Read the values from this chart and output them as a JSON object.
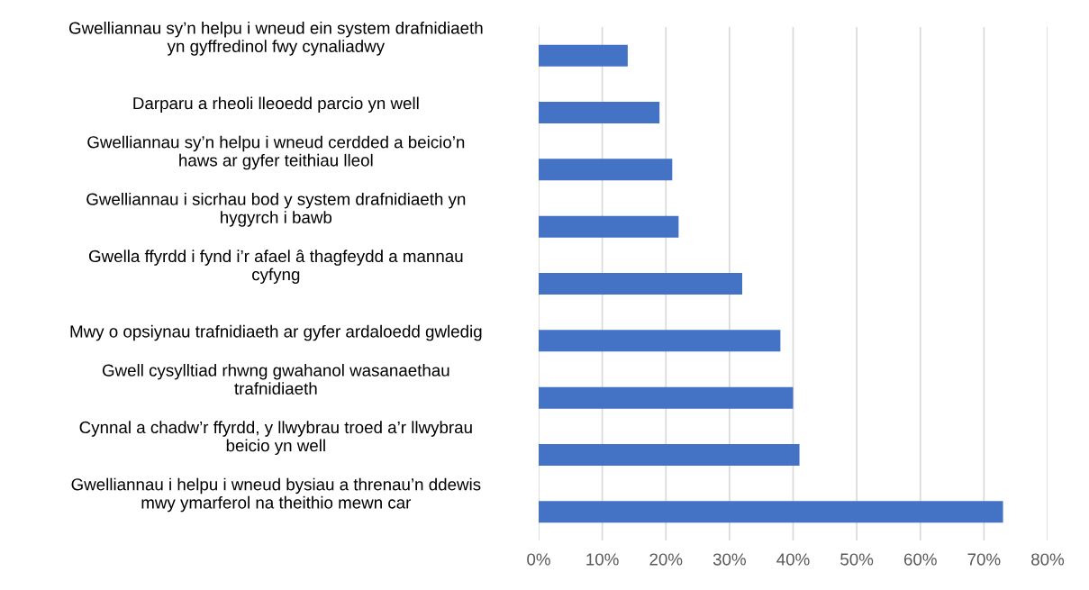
{
  "chart_data": {
    "type": "bar",
    "orientation": "horizontal",
    "categories": [
      "Gwelliannau sy’n helpu i wneud ein system drafnidiaeth\nyn gyffredinol fwy cynaliadwy",
      "Darparu a rheoli lleoedd parcio yn well",
      "Gwelliannau sy’n helpu i wneud cerdded a beicio’n\nhaws ar gyfer teithiau lleol",
      "Gwelliannau i sicrhau bod y system drafnidiaeth yn\nhygyrch i bawb",
      "Gwella ffyrdd i fynd i’r afael â thagfeydd a mannau\ncyfyng",
      "Mwy o opsiynau trafnidiaeth ar gyfer ardaloedd gwledig",
      "Gwell cysylltiad rhwng gwahanol wasanaethau\ntrafnidiaeth",
      "Cynnal a chadw’r ffyrdd, y llwybrau troed a’r llwybrau\nbeicio yn well",
      "Gwelliannau i helpu i wneud bysiau a threnau’n ddewis\nmwy ymarferol na theithio mewn car"
    ],
    "values": [
      14,
      19,
      21,
      22,
      32,
      38,
      40,
      41,
      73
    ],
    "color": "#4472c4",
    "xlim": [
      0,
      80
    ],
    "xticks": [
      {
        "value": 0,
        "label": "0%"
      },
      {
        "value": 10,
        "label": "10%"
      },
      {
        "value": 20,
        "label": "20%"
      },
      {
        "value": 30,
        "label": "30%"
      },
      {
        "value": 40,
        "label": "40%"
      },
      {
        "value": 50,
        "label": "50%"
      },
      {
        "value": 60,
        "label": "60%"
      },
      {
        "value": 70,
        "label": "70%"
      },
      {
        "value": 80,
        "label": "80%"
      }
    ],
    "grid": "x"
  }
}
